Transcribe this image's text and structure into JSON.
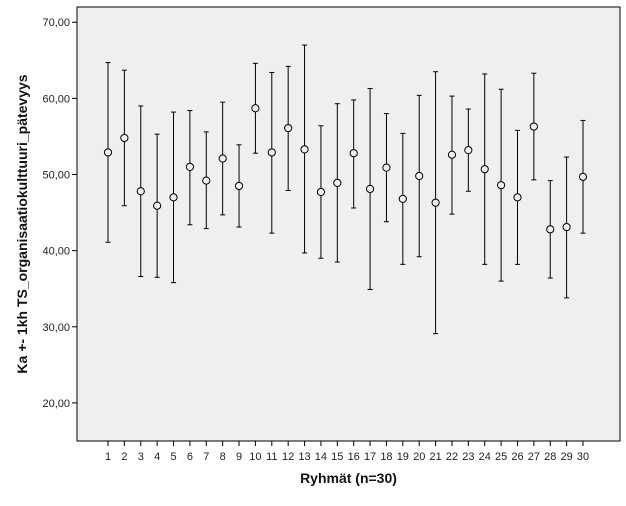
{
  "chart_data": {
    "type": "errorbar",
    "xlabel": "Ryhmät (n=30)",
    "ylabel": "Ka +- 1kh TS_organisaatiokulttuuri_pätevyys",
    "ylim": [
      15,
      72
    ],
    "yticks": [
      20,
      30,
      40,
      50,
      60,
      70
    ],
    "ytick_labels": [
      "20,00",
      "30,00",
      "40,00",
      "50,00",
      "60,00",
      "70,00"
    ],
    "categories": [
      "1",
      "2",
      "3",
      "4",
      "5",
      "6",
      "7",
      "8",
      "9",
      "10",
      "11",
      "12",
      "13",
      "14",
      "15",
      "16",
      "17",
      "18",
      "19",
      "20",
      "21",
      "22",
      "23",
      "24",
      "25",
      "26",
      "27",
      "28",
      "29",
      "30"
    ],
    "mean": [
      52.9,
      54.8,
      47.8,
      45.9,
      47.0,
      51.0,
      49.2,
      52.1,
      48.5,
      58.7,
      52.9,
      56.1,
      53.3,
      47.7,
      48.9,
      52.8,
      48.1,
      50.9,
      46.8,
      49.8,
      46.3,
      52.6,
      53.2,
      50.7,
      48.6,
      47.0,
      56.3,
      42.8,
      43.1,
      49.7
    ],
    "upper": [
      64.7,
      63.7,
      59.0,
      55.3,
      58.2,
      58.4,
      55.6,
      59.5,
      53.9,
      64.6,
      63.4,
      64.2,
      67.0,
      56.4,
      59.3,
      59.8,
      61.3,
      58.0,
      55.4,
      60.4,
      63.5,
      60.3,
      58.6,
      63.2,
      61.2,
      55.8,
      63.3,
      49.2,
      52.3,
      57.1
    ],
    "lower": [
      41.1,
      45.9,
      36.6,
      36.5,
      35.8,
      43.4,
      42.9,
      44.7,
      43.1,
      52.8,
      42.3,
      47.9,
      39.7,
      39.0,
      38.5,
      45.6,
      34.9,
      43.8,
      38.2,
      39.2,
      29.1,
      44.8,
      47.8,
      38.2,
      36.0,
      38.2,
      49.3,
      36.4,
      33.8,
      42.3
    ],
    "grid": false,
    "legend": "none",
    "colors": {
      "plot_bg": "#efefef",
      "frame": "#000000",
      "marker": "#000000"
    }
  }
}
